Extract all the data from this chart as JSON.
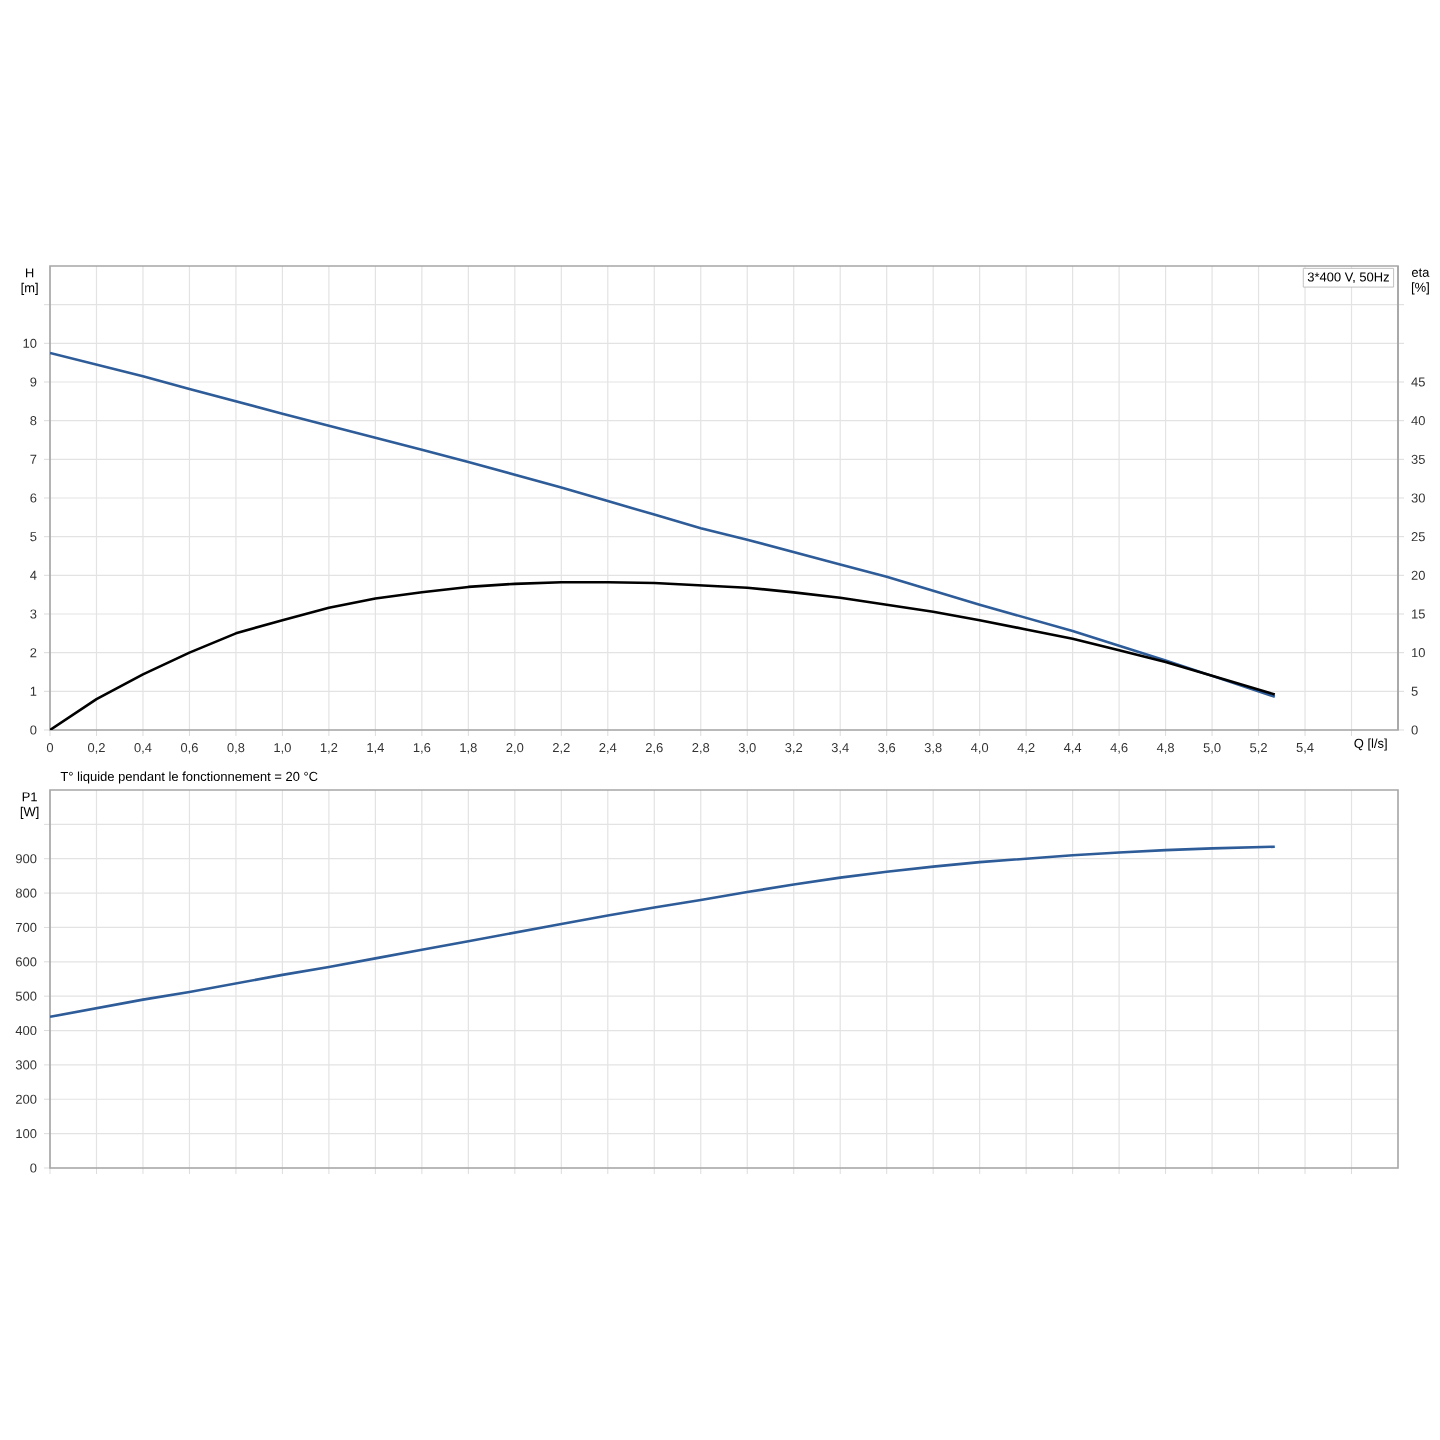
{
  "chart_data": [
    {
      "type": "line",
      "xlabel": "Q [l/s]",
      "ylabel": "H [m]",
      "y2label": "eta [%]",
      "grid": true,
      "line_style": "solid",
      "annotations": [
        "3*400 V, 50Hz"
      ],
      "xlim": [
        0,
        5.8
      ],
      "ylim": [
        0,
        12
      ],
      "y2lim": [
        0,
        60
      ],
      "xticks": [
        0,
        {
          "value": 0.2,
          "label": "0,2"
        },
        {
          "value": 0.4,
          "label": "0,4"
        },
        {
          "value": 0.6,
          "label": "0,6"
        },
        {
          "value": 0.8,
          "label": "0,8"
        },
        {
          "value": 1.0,
          "label": "1,0"
        },
        {
          "value": 1.2,
          "label": "1,2"
        },
        {
          "value": 1.4,
          "label": "1,4"
        },
        {
          "value": 1.6,
          "label": "1,6"
        },
        {
          "value": 1.8,
          "label": "1,8"
        },
        {
          "value": 2.0,
          "label": "2,0"
        },
        {
          "value": 2.2,
          "label": "2,2"
        },
        {
          "value": 2.4,
          "label": "2,4"
        },
        {
          "value": 2.6,
          "label": "2,6"
        },
        {
          "value": 2.8,
          "label": "2,8"
        },
        {
          "value": 3.0,
          "label": "3,0"
        },
        {
          "value": 3.2,
          "label": "3,2"
        },
        {
          "value": 3.4,
          "label": "3,4"
        },
        {
          "value": 3.6,
          "label": "3,6"
        },
        {
          "value": 3.8,
          "label": "3,8"
        },
        {
          "value": 4.0,
          "label": "4,0"
        },
        {
          "value": 4.2,
          "label": "4,2"
        },
        {
          "value": 4.4,
          "label": "4,4"
        },
        {
          "value": 4.6,
          "label": "4,6"
        },
        {
          "value": 4.8,
          "label": "4,8"
        },
        {
          "value": 5.0,
          "label": "5,0"
        },
        {
          "value": 5.2,
          "label": "5,2"
        },
        {
          "value": 5.4,
          "label": "5,4"
        },
        {
          "value": 5.6,
          "label": null
        }
      ],
      "yticks": [
        0,
        1,
        2,
        3,
        4,
        5,
        6,
        7,
        8,
        9,
        10,
        {
          "value": 11,
          "label": null
        }
      ],
      "y2ticks": [
        0,
        5,
        10,
        15,
        20,
        25,
        30,
        35,
        40,
        45,
        {
          "value": 50,
          "label": null
        },
        {
          "value": 55,
          "label": null
        }
      ],
      "x": [
        0,
        0.2,
        0.4,
        0.6,
        0.8,
        1.0,
        1.2,
        1.4,
        1.6,
        1.8,
        2.0,
        2.2,
        2.4,
        2.6,
        2.8,
        3.0,
        3.2,
        3.4,
        3.6,
        3.8,
        4.0,
        4.2,
        4.4,
        4.6,
        4.8,
        5.0,
        5.27
      ],
      "series": [
        {
          "color": "#2e5c99",
          "values": [
            9.75,
            9.45,
            9.15,
            8.82,
            8.5,
            8.18,
            7.87,
            7.56,
            7.25,
            6.93,
            6.6,
            6.27,
            5.92,
            5.57,
            5.22,
            4.92,
            4.6,
            4.28,
            3.96,
            3.6,
            3.24,
            2.9,
            2.56,
            2.18,
            1.8,
            1.4,
            0.86
          ]
        },
        {
          "color": "#000000",
          "axis": "y2",
          "values": [
            0,
            4,
            7.2,
            10,
            12.5,
            14.2,
            15.8,
            17,
            17.8,
            18.5,
            18.9,
            19.1,
            19.1,
            19.0,
            18.7,
            18.4,
            17.8,
            17.1,
            16.2,
            15.3,
            14.2,
            13.0,
            11.8,
            10.3,
            8.8,
            7.0,
            4.6
          ]
        }
      ]
    },
    {
      "type": "line",
      "ylabel": "P1 [W]",
      "grid": true,
      "line_style": "solid",
      "tick_labels": "y",
      "annotations": [
        "T° liquide pendant le fonctionnement = 20 °C"
      ],
      "xlim": [
        0,
        5.8
      ],
      "ylim": [
        0,
        1100
      ],
      "xticks": [
        0,
        0.2,
        0.4,
        0.6,
        0.8,
        1.0,
        1.2,
        1.4,
        1.6,
        1.8,
        2.0,
        2.2,
        2.4,
        2.6,
        2.8,
        3.0,
        3.2,
        3.4,
        3.6,
        3.8,
        4.0,
        4.2,
        4.4,
        4.6,
        4.8,
        5.0,
        5.2,
        5.4,
        5.6
      ],
      "yticks": [
        0,
        100,
        200,
        300,
        400,
        500,
        600,
        700,
        800,
        900,
        {
          "value": 1000,
          "label": null
        }
      ],
      "x": [
        0,
        0.2,
        0.4,
        0.6,
        0.8,
        1.0,
        1.2,
        1.4,
        1.6,
        1.8,
        2.0,
        2.2,
        2.4,
        2.6,
        2.8,
        3.0,
        3.2,
        3.4,
        3.6,
        3.8,
        4.0,
        4.2,
        4.4,
        4.6,
        4.8,
        5.0,
        5.27
      ],
      "series": [
        {
          "color": "#2e5c99",
          "values": [
            440,
            465,
            490,
            512,
            537,
            562,
            585,
            610,
            635,
            660,
            685,
            710,
            735,
            758,
            780,
            803,
            825,
            845,
            862,
            877,
            890,
            900,
            910,
            918,
            925,
            930,
            935
          ]
        }
      ]
    }
  ]
}
